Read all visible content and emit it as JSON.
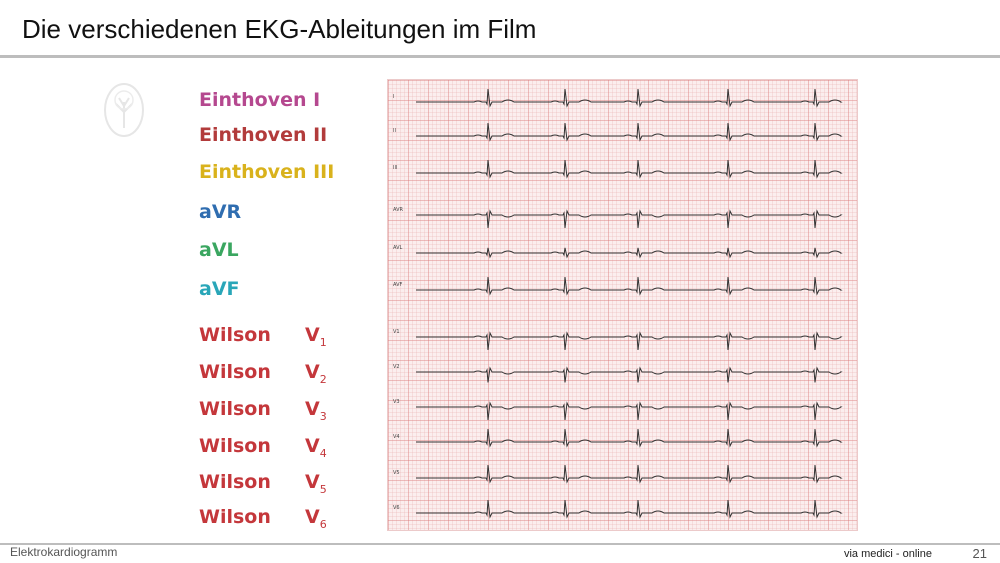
{
  "slide": {
    "title": "Die verschiedenen EKG-Ableitungen im Film",
    "footer_left": "Elektrokardiogramm",
    "footer_right": "via medici - online",
    "page_number": "21"
  },
  "leads": [
    {
      "label": "Einthoven I",
      "color": "#b5488f"
    },
    {
      "label": "Einthoven II",
      "color": "#b23b3b"
    },
    {
      "label": "Einthoven III",
      "color": "#d9b21c"
    },
    {
      "label": "aVR",
      "color": "#2f6db0"
    },
    {
      "label": "aVL",
      "color": "#3aa660"
    },
    {
      "label": "aVF",
      "color": "#29a6b8"
    }
  ],
  "wilson": [
    {
      "label": "Wilson",
      "v": "V",
      "sub": "1"
    },
    {
      "label": "Wilson",
      "v": "V",
      "sub": "2"
    },
    {
      "label": "Wilson",
      "v": "V",
      "sub": "3"
    },
    {
      "label": "Wilson",
      "v": "V",
      "sub": "4"
    },
    {
      "label": "Wilson",
      "v": "V",
      "sub": "5"
    },
    {
      "label": "Wilson",
      "v": "V",
      "sub": "6"
    }
  ],
  "wilson_color": "#c4373b",
  "ecg": {
    "trace_labels": [
      "I",
      "II",
      "III",
      "AVR",
      "AVL",
      "AVF",
      "V1",
      "V2",
      "V3",
      "V4",
      "V5",
      "V6"
    ],
    "polarity": [
      1,
      1,
      1,
      -1,
      0.4,
      1,
      -1,
      -0.8,
      -1,
      1,
      1,
      1
    ]
  }
}
